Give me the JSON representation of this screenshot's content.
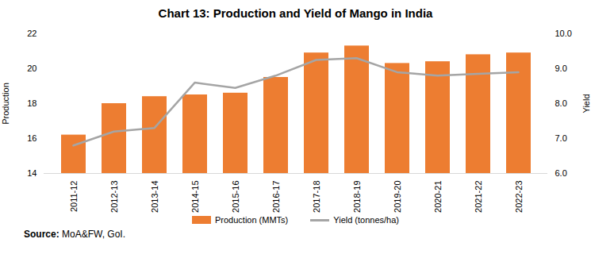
{
  "chart_data": {
    "type": "bar",
    "title": "Chart 13: Production and Yield of Mango in India",
    "categories": [
      "2011-12",
      "2012-13",
      "2013-14",
      "2014-15",
      "2015-16",
      "2016-17",
      "2017-18",
      "2018-19",
      "2019-20",
      "2020-21",
      "2021-22",
      "2022-23"
    ],
    "series": [
      {
        "name": "Production (MMTs)",
        "type": "bar",
        "color": "#ED7D31",
        "values": [
          16.2,
          18.0,
          18.4,
          18.5,
          18.6,
          19.5,
          20.9,
          21.3,
          20.3,
          20.4,
          20.8,
          20.9
        ]
      },
      {
        "name": "Yield (tonnes/ha)",
        "type": "line",
        "axis": "y2",
        "color": "#A5A5A5",
        "values": [
          6.8,
          7.2,
          7.3,
          8.6,
          8.45,
          8.8,
          9.25,
          9.3,
          8.9,
          8.8,
          8.85,
          8.9
        ]
      }
    ],
    "y_label": "Production",
    "y2_label": "Yield",
    "ylim": [
      14,
      22
    ],
    "yticks": [
      14,
      16,
      18,
      20,
      22
    ],
    "y2lim": [
      6,
      10
    ],
    "y2ticks": [
      6,
      7,
      8,
      9,
      10
    ],
    "grid": false,
    "legend": "bottom",
    "source_label": "Source:",
    "source": "MoA&FW, GoI."
  }
}
